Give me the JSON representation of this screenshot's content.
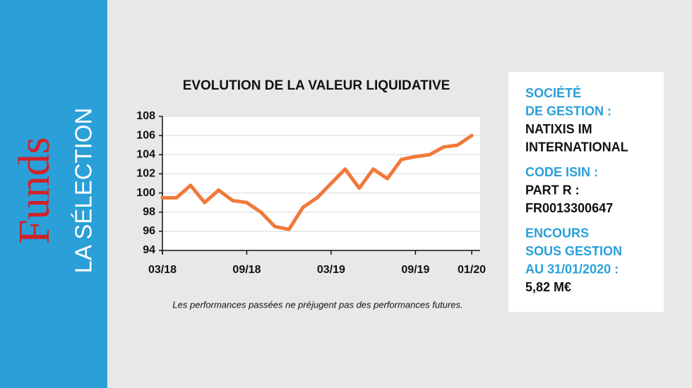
{
  "sidebar": {
    "brand": "Funds",
    "subtitle": "LA SÉLECTION"
  },
  "chart_data": {
    "type": "line",
    "title": "EVOLUTION DE LA VALEUR LIQUIDATIVE",
    "x": [
      "03/18",
      "04/18",
      "05/18",
      "06/18",
      "07/18",
      "08/18",
      "09/18",
      "10/18",
      "11/18",
      "12/18",
      "01/19",
      "02/19",
      "03/19",
      "04/19",
      "05/19",
      "06/19",
      "07/19",
      "08/19",
      "09/19",
      "10/19",
      "11/19",
      "12/19",
      "01/20"
    ],
    "values": [
      99.5,
      99.5,
      100.8,
      99.0,
      100.3,
      99.2,
      99.0,
      98.0,
      96.5,
      96.2,
      98.5,
      99.5,
      101.0,
      102.5,
      100.5,
      102.5,
      101.5,
      103.5,
      103.8,
      104.0,
      104.8,
      105.0,
      106.0
    ],
    "color": "#f07a3a",
    "xticks": [
      "03/18",
      "09/18",
      "03/19",
      "09/19",
      "01/20"
    ],
    "ylim": [
      94,
      108
    ],
    "yticks": [
      94,
      96,
      98,
      100,
      102,
      104,
      106,
      108
    ],
    "grid": true,
    "note": "Les performances passées ne préjugent pas des performances futures."
  },
  "info": [
    {
      "heading": [
        "SOCIÉTÉ",
        "DE GESTION :"
      ],
      "value": [
        "NATIXIS IM",
        "INTERNATIONAL"
      ]
    },
    {
      "heading": [
        "CODE ISIN :"
      ],
      "value": [
        "PART R :",
        "FR0013300647"
      ]
    },
    {
      "heading": [
        "ENCOURS",
        "SOUS GESTION",
        "AU 31/01/2020 :"
      ],
      "value": [
        "5,82 M€"
      ]
    }
  ]
}
